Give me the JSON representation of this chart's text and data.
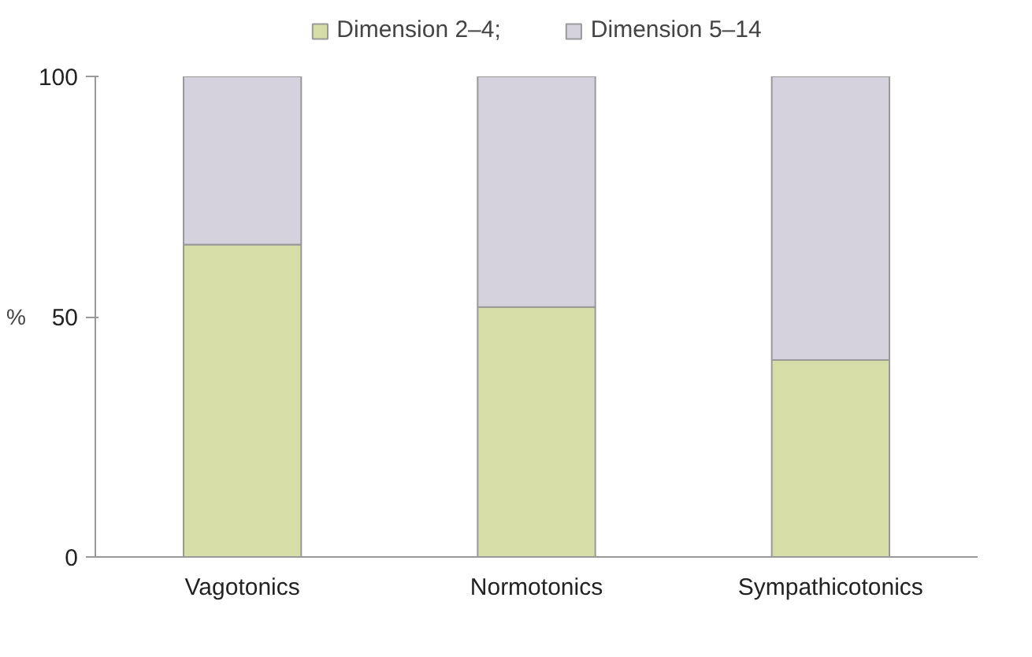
{
  "chart_data": {
    "type": "bar",
    "stacked": true,
    "ylabel": "%",
    "categories": [
      "Vagotonics",
      "Normotonics",
      "Sympathicotonics"
    ],
    "series": [
      {
        "name": "Dimension 2–4;",
        "color": "#d6dda6",
        "values": [
          65,
          52,
          41
        ]
      },
      {
        "name": "Dimension 5–14",
        "color": "#d5d2de",
        "values": [
          35,
          48,
          59
        ]
      }
    ],
    "ylim": [
      0,
      100
    ],
    "yticks": [
      0,
      50,
      100
    ],
    "grid": false,
    "legend": "top"
  }
}
